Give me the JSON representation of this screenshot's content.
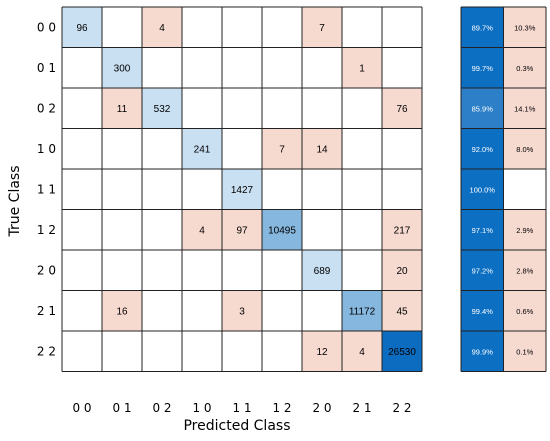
{
  "chart_data": {
    "type": "heatmap",
    "title": "",
    "xlabel": "Predicted Class",
    "ylabel": "True Class",
    "classes": [
      "0 0",
      "0 1",
      "0 2",
      "1 0",
      "1 1",
      "1 2",
      "2 0",
      "2 1",
      "2 2"
    ],
    "matrix": [
      [
        96,
        null,
        4,
        null,
        null,
        null,
        7,
        null,
        null
      ],
      [
        null,
        300,
        null,
        null,
        null,
        null,
        null,
        1,
        null
      ],
      [
        null,
        11,
        532,
        null,
        null,
        null,
        null,
        null,
        76
      ],
      [
        null,
        null,
        null,
        241,
        null,
        7,
        14,
        null,
        null
      ],
      [
        null,
        null,
        null,
        null,
        1427,
        null,
        null,
        null,
        null
      ],
      [
        null,
        null,
        null,
        4,
        97,
        10495,
        null,
        null,
        217
      ],
      [
        null,
        null,
        null,
        null,
        null,
        null,
        689,
        null,
        20
      ],
      [
        null,
        16,
        null,
        null,
        3,
        null,
        null,
        11172,
        45
      ],
      [
        null,
        null,
        null,
        null,
        null,
        null,
        12,
        4,
        26530
      ]
    ],
    "row_summary": {
      "correct": [
        "89.7%",
        "99.7%",
        "85.9%",
        "92.0%",
        "100.0%",
        "97.1%",
        "97.2%",
        "99.4%",
        "99.9%"
      ],
      "incorrect": [
        "10.3%",
        "0.3%",
        "14.1%",
        "8.0%",
        "",
        "2.9%",
        "2.8%",
        "0.6%",
        "0.1%"
      ]
    },
    "colors": {
      "diagonal_light": "#c9e0f3",
      "diagonal_mid": "#86b7df",
      "diagonal_dark": "#0b6cc0",
      "off_diagonal": "#f6d9cf",
      "summary_correct": "#0d6fc2",
      "summary_correct_light": "#2d7fc8",
      "summary_incorrect": "#f6d9cf"
    }
  }
}
